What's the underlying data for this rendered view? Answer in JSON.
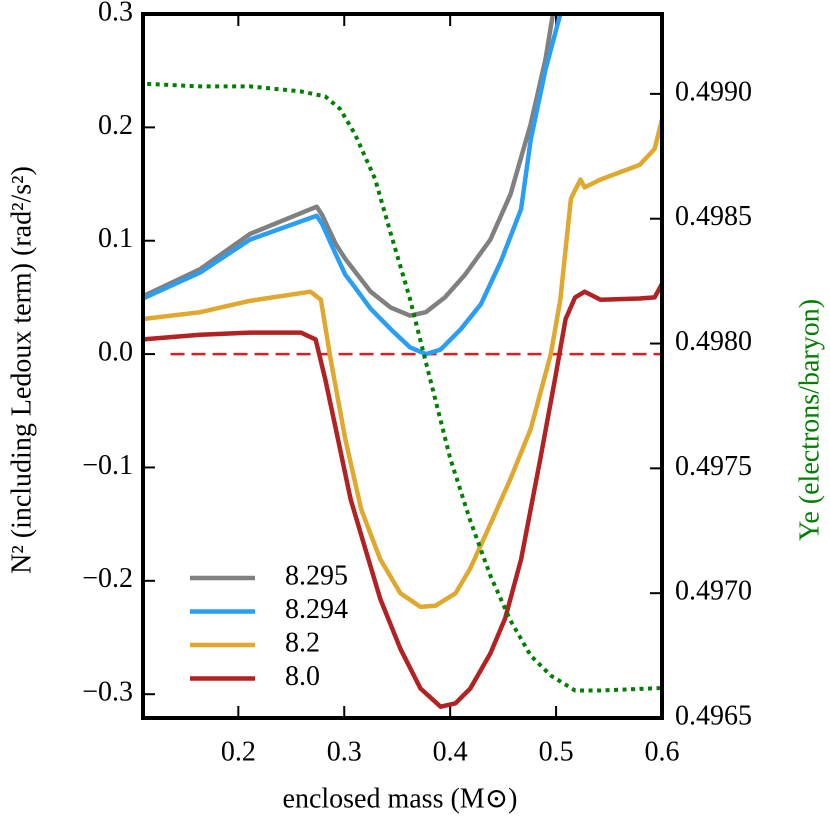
{
  "chart_data": {
    "type": "line",
    "x_label": "enclosed mass (M⊙)",
    "y_label": "N² (including Ledoux term) (rad²/s²)",
    "y2_label": "Ye (electrons/baryon)",
    "y2_label_color": "#007f00",
    "xlim": [
      0.11,
      0.6
    ],
    "xticks": [
      0.2,
      0.3,
      0.4,
      0.5,
      0.6
    ],
    "ylim": [
      -0.321,
      0.3
    ],
    "yticks": [
      {
        "value": -0.3,
        "label": "−0.3"
      },
      {
        "value": -0.2,
        "label": "−0.2"
      },
      {
        "value": -0.1,
        "label": "−0.1"
      },
      {
        "value": 0,
        "label": "0.0"
      },
      0.1,
      0.2,
      0.3
    ],
    "y2lim": [
      0.4965,
      0.49932
    ],
    "y2ticks": [
      {
        "value": 0.4965,
        "label": "0.4965"
      },
      {
        "value": 0.497,
        "label": "0.4970"
      },
      {
        "value": 0.4975,
        "label": "0.4975"
      },
      {
        "value": 0.498,
        "label": "0.4980"
      },
      {
        "value": 0.4985,
        "label": "0.4985"
      },
      {
        "value": 0.499,
        "label": "0.4990"
      }
    ],
    "legend": "lower left",
    "reference_line": {
      "y": 0,
      "xrange": [
        0.136,
        0.6
      ],
      "color": "#e41a1c",
      "style": "dashed"
    },
    "series": [
      {
        "name": "8.295",
        "color": "#808080",
        "x": [
          0.11,
          0.164,
          0.211,
          0.274,
          0.279,
          0.292,
          0.301,
          0.31,
          0.325,
          0.344,
          0.362,
          0.377,
          0.395,
          0.414,
          0.438,
          0.457,
          0.476,
          0.49,
          0.497
        ],
        "values": [
          0.051,
          0.075,
          0.106,
          0.13,
          0.123,
          0.097,
          0.084,
          0.073,
          0.055,
          0.041,
          0.034,
          0.037,
          0.05,
          0.07,
          0.101,
          0.141,
          0.203,
          0.26,
          0.3
        ]
      },
      {
        "name": "8.294",
        "color": "#2a9df4",
        "x": [
          0.11,
          0.164,
          0.211,
          0.274,
          0.279,
          0.292,
          0.301,
          0.31,
          0.325,
          0.344,
          0.362,
          0.377,
          0.391,
          0.41,
          0.429,
          0.448,
          0.467,
          0.476,
          0.49,
          0.504
        ],
        "values": [
          0.049,
          0.072,
          0.101,
          0.122,
          0.115,
          0.088,
          0.07,
          0.059,
          0.04,
          0.022,
          0.006,
          0.0,
          0.004,
          0.022,
          0.044,
          0.082,
          0.128,
          0.189,
          0.251,
          0.3
        ]
      },
      {
        "name": "8.2",
        "color": "#e0a82e",
        "x": [
          0.11,
          0.164,
          0.211,
          0.268,
          0.278,
          0.287,
          0.301,
          0.316,
          0.334,
          0.353,
          0.372,
          0.386,
          0.405,
          0.419,
          0.438,
          0.457,
          0.476,
          0.495,
          0.504,
          0.514,
          0.523,
          0.527,
          0.542,
          0.579,
          0.593,
          0.6
        ],
        "values": [
          0.031,
          0.037,
          0.047,
          0.055,
          0.048,
          -0.004,
          -0.075,
          -0.137,
          -0.181,
          -0.211,
          -0.223,
          -0.222,
          -0.211,
          -0.189,
          -0.15,
          -0.11,
          -0.066,
          0.0,
          0.048,
          0.137,
          0.154,
          0.147,
          0.154,
          0.167,
          0.181,
          0.207
        ]
      },
      {
        "name": "8.0",
        "color": "#b22222",
        "x": [
          0.11,
          0.164,
          0.211,
          0.259,
          0.273,
          0.282,
          0.292,
          0.306,
          0.32,
          0.334,
          0.353,
          0.372,
          0.391,
          0.405,
          0.419,
          0.438,
          0.452,
          0.467,
          0.485,
          0.499,
          0.509,
          0.518,
          0.527,
          0.542,
          0.579,
          0.593,
          0.6
        ],
        "values": [
          0.013,
          0.017,
          0.019,
          0.019,
          0.013,
          -0.022,
          -0.066,
          -0.128,
          -0.172,
          -0.216,
          -0.26,
          -0.295,
          -0.311,
          -0.308,
          -0.295,
          -0.264,
          -0.233,
          -0.181,
          -0.093,
          -0.022,
          0.031,
          0.05,
          0.055,
          0.048,
          0.049,
          0.05,
          0.062
        ]
      },
      {
        "axis": "y2",
        "color": "#007f00",
        "style": "dotted",
        "x": [
          0.114,
          0.164,
          0.211,
          0.259,
          0.282,
          0.296,
          0.31,
          0.329,
          0.344,
          0.362,
          0.381,
          0.4,
          0.419,
          0.438,
          0.457,
          0.476,
          0.495,
          0.518,
          0.542,
          0.6
        ],
        "values": [
          0.49904,
          0.49903,
          0.49903,
          0.49901,
          0.49899,
          0.49894,
          0.49884,
          0.49866,
          0.49844,
          0.49818,
          0.49786,
          0.49754,
          0.49729,
          0.49707,
          0.49689,
          0.49675,
          0.49667,
          0.49661,
          0.49661,
          0.49662
        ]
      }
    ]
  }
}
